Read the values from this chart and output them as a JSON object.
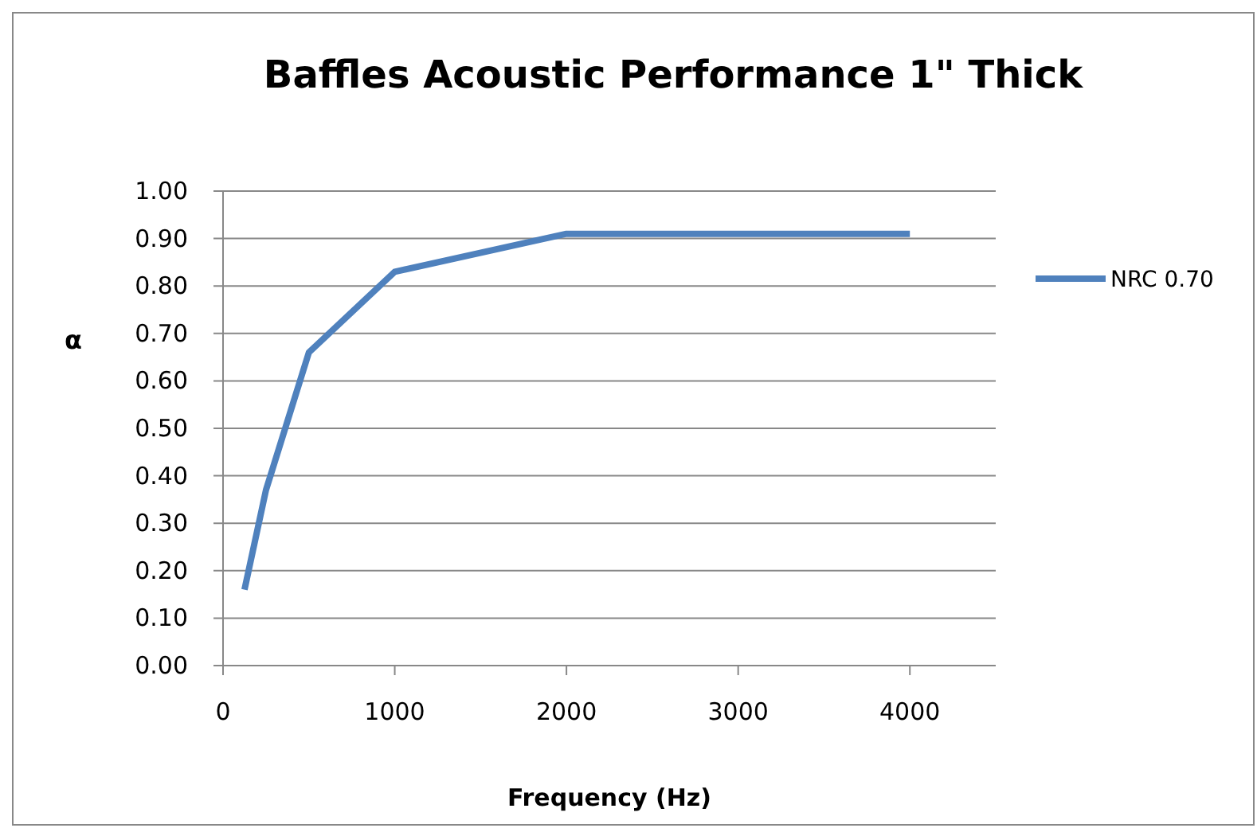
{
  "chart_data": {
    "type": "line",
    "title": "Baffles Acoustic  Performance 1\"   Thick",
    "xlabel": "Frequency (Hz)",
    "ylabel": "α",
    "x": [
      125,
      250,
      500,
      1000,
      2000,
      4000
    ],
    "series": [
      {
        "name": "NRC 0.70",
        "color": "#4f81bd",
        "values": [
          0.16,
          0.37,
          0.66,
          0.83,
          0.91,
          0.91
        ]
      }
    ],
    "xlim": [
      0,
      4500
    ],
    "xticks": [
      0,
      1000,
      2000,
      3000,
      4000
    ],
    "ylim": [
      0,
      1
    ],
    "yticks": [
      {
        "value": 0,
        "label": "0.00"
      },
      {
        "value": 0.1,
        "label": "0.10"
      },
      {
        "value": 0.2,
        "label": "0.20"
      },
      {
        "value": 0.3,
        "label": "0.30"
      },
      {
        "value": 0.4,
        "label": "0.40"
      },
      {
        "value": 0.5,
        "label": "0.50"
      },
      {
        "value": 0.6,
        "label": "0.60"
      },
      {
        "value": 0.7,
        "label": "0.70"
      },
      {
        "value": 0.8,
        "label": "0.80"
      },
      {
        "value": 0.9,
        "label": "0.90"
      },
      {
        "value": 1,
        "label": "1.00"
      }
    ],
    "grid": "y",
    "legend": "right",
    "marker": "none",
    "line_style": "solid"
  }
}
